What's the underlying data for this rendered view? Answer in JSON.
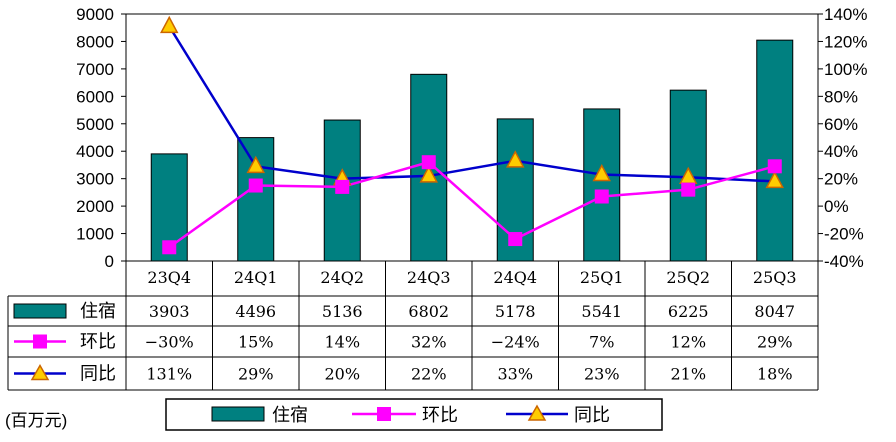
{
  "chart_data": {
    "type": "bar+line",
    "categories": [
      "23Q4",
      "24Q1",
      "24Q2",
      "24Q3",
      "24Q4",
      "25Q1",
      "25Q2",
      "25Q3"
    ],
    "series": [
      {
        "name": "住宿",
        "kind": "bar",
        "axis": "left",
        "values": [
          3903,
          4496,
          5136,
          6802,
          5178,
          5541,
          6225,
          8047
        ],
        "labels": [
          "3903",
          "4496",
          "5136",
          "6802",
          "5178",
          "5541",
          "6225",
          "8047"
        ]
      },
      {
        "name": "环比",
        "kind": "line",
        "axis": "right",
        "marker": "square",
        "values": [
          -30,
          15,
          14,
          32,
          -24,
          7,
          12,
          29
        ],
        "labels": [
          "−30%",
          "15%",
          "14%",
          "32%",
          "−24%",
          "7%",
          "12%",
          "29%"
        ]
      },
      {
        "name": "同比",
        "kind": "line",
        "axis": "right",
        "marker": "triangle",
        "values": [
          131,
          29,
          20,
          22,
          33,
          23,
          21,
          18
        ],
        "labels": [
          "131%",
          "29%",
          "20%",
          "22%",
          "33%",
          "23%",
          "21%",
          "18%"
        ]
      }
    ],
    "left_axis": {
      "min": 0,
      "max": 9000,
      "step": 1000,
      "ticks": [
        "0",
        "1000",
        "2000",
        "3000",
        "4000",
        "5000",
        "6000",
        "7000",
        "8000",
        "9000"
      ]
    },
    "right_axis": {
      "min": -40,
      "max": 140,
      "step": 20,
      "ticks": [
        "-40%",
        "-20%",
        "0%",
        "20%",
        "40%",
        "60%",
        "80%",
        "100%",
        "120%",
        "140%"
      ]
    },
    "unit_label": "(百万元)",
    "legend": [
      "住宿",
      "环比",
      "同比"
    ],
    "grid": false,
    "colors": {
      "bar": "#008080",
      "mom": "#ff00ff",
      "yoy": "#0000cc",
      "marker_fill": "#ffcc00",
      "marker_edge": "#cc6600"
    }
  }
}
